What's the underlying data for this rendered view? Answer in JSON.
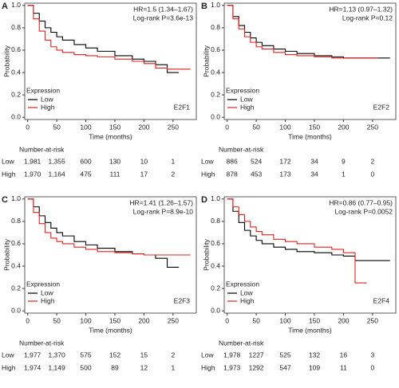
{
  "chart_data": [
    {
      "type": "line",
      "panel_label": "A",
      "annotations": [
        "HR=1.5 (1.34–1.67)",
        "Log-rank P=3.6e-13"
      ],
      "label": "E2F1",
      "legend_title": "Expression",
      "xlabel": "Time (months)",
      "ylabel": "Probability",
      "x": [
        0,
        10,
        20,
        30,
        40,
        50,
        60,
        80,
        100,
        120,
        150,
        180,
        200,
        220,
        240,
        260,
        280
      ],
      "series": [
        {
          "name": "Low",
          "color": "#000000",
          "values": [
            1,
            0.93,
            0.86,
            0.8,
            0.76,
            0.72,
            0.69,
            0.65,
            0.62,
            0.59,
            0.55,
            0.52,
            0.5,
            0.47,
            0.4,
            0.4,
            null
          ]
        },
        {
          "name": "High",
          "color": "#e3211f",
          "values": [
            1,
            0.88,
            0.77,
            0.69,
            0.63,
            0.6,
            0.58,
            0.56,
            0.55,
            0.54,
            0.52,
            0.5,
            0.48,
            0.44,
            0.43,
            0.43,
            0.43
          ]
        }
      ],
      "xlim": [
        -5,
        290
      ],
      "xticks": [
        0,
        50,
        100,
        150,
        200,
        250
      ],
      "ylim": [
        -0.02,
        1.02
      ],
      "yticks": [
        {
          "value": 0,
          "label": "0.0"
        },
        0.2,
        0.4,
        0.6,
        0.8,
        {
          "value": 1,
          "label": "1.0"
        }
      ],
      "risk_table": {
        "title": "Number-at-risk",
        "rows": [
          {
            "values": [
              1981,
              1355,
              600,
              130,
              10,
              1
            ],
            "value_labels": [
              "1,981",
              "1,355",
              "600",
              "130",
              "10",
              "1"
            ]
          },
          {
            "values": [
              1970,
              1164,
              475,
              111,
              17,
              2
            ],
            "value_labels": [
              "1,970",
              "1,164",
              "475",
              "111",
              "17",
              "2"
            ]
          }
        ]
      }
    },
    {
      "type": "line",
      "panel_label": "B",
      "annotations": [
        "HR=1.13 (0.97–1.32)",
        "Log-rank P=0.12"
      ],
      "label": "E2F2",
      "legend_title": "Expression",
      "xlabel": "Time (months)",
      "ylabel": "Probability",
      "x": [
        0,
        10,
        20,
        30,
        40,
        50,
        60,
        80,
        100,
        120,
        150,
        180,
        200,
        220,
        240,
        260,
        280
      ],
      "series": [
        {
          "name": "Low",
          "color": "#000000",
          "values": [
            1,
            0.9,
            0.82,
            0.76,
            0.71,
            0.67,
            0.64,
            0.61,
            0.59,
            0.57,
            0.55,
            0.54,
            0.53,
            0.53,
            0.53,
            0.53,
            0.53
          ]
        },
        {
          "name": "High",
          "color": "#e3211f",
          "values": [
            1,
            0.88,
            0.79,
            0.72,
            0.67,
            0.63,
            0.61,
            0.58,
            0.56,
            0.55,
            0.54,
            0.53,
            0.53,
            0.53,
            0.53,
            0.53,
            null
          ]
        }
      ],
      "xlim": [
        -5,
        290
      ],
      "xticks": [
        0,
        50,
        100,
        150,
        200,
        250
      ],
      "ylim": [
        -0.02,
        1.02
      ],
      "yticks": [
        {
          "value": 0,
          "label": "0.0"
        },
        0.2,
        0.4,
        0.6,
        0.8,
        {
          "value": 1,
          "label": "1.0"
        }
      ],
      "risk_table": {
        "title": "Number-at-risk",
        "rows": [
          {
            "values": [
              886,
              524,
              172,
              34,
              9,
              2
            ]
          },
          {
            "values": [
              878,
              453,
              173,
              34,
              1,
              0
            ]
          }
        ]
      }
    },
    {
      "type": "line",
      "panel_label": "C",
      "annotations": [
        "HR=1.41 (1.26–1.57)",
        "Log-rank P=8.9e-10"
      ],
      "label": "E2F3",
      "legend_title": "Expression",
      "xlabel": "Time (months)",
      "ylabel": "Probability",
      "x": [
        0,
        10,
        20,
        30,
        40,
        50,
        60,
        80,
        100,
        120,
        150,
        180,
        200,
        220,
        240,
        260,
        280
      ],
      "series": [
        {
          "name": "Low",
          "color": "#000000",
          "values": [
            1,
            0.93,
            0.85,
            0.79,
            0.74,
            0.7,
            0.67,
            0.62,
            0.59,
            0.56,
            0.53,
            0.51,
            0.5,
            0.47,
            0.39,
            0.39,
            null
          ]
        },
        {
          "name": "High",
          "color": "#e3211f",
          "values": [
            1,
            0.88,
            0.78,
            0.7,
            0.65,
            0.62,
            0.6,
            0.57,
            0.55,
            0.53,
            0.52,
            0.51,
            0.5,
            0.5,
            0.5,
            0.5,
            0.5
          ]
        }
      ],
      "xlim": [
        -5,
        290
      ],
      "xticks": [
        0,
        50,
        100,
        150,
        200,
        250
      ],
      "ylim": [
        -0.02,
        1.02
      ],
      "yticks": [
        {
          "value": 0,
          "label": "0.0"
        },
        0.2,
        0.4,
        0.6,
        0.8,
        {
          "value": 1,
          "label": "1.0"
        }
      ],
      "risk_table": {
        "title": "Number-at-risk",
        "rows": [
          {
            "values": [
              1977,
              1370,
              575,
              152,
              15,
              2
            ],
            "value_labels": [
              "1,977",
              "1,370",
              "575",
              "152",
              "15",
              "2"
            ]
          },
          {
            "values": [
              1974,
              1149,
              500,
              89,
              12,
              1
            ],
            "value_labels": [
              "1,974",
              "1,149",
              "500",
              "89",
              "12",
              "1"
            ]
          }
        ]
      }
    },
    {
      "type": "line",
      "panel_label": "D",
      "annotations": [
        "HR=0.86 (0.77–0.95)",
        "Log-rank P=0.0052"
      ],
      "label": "E2F4",
      "legend_title": "Expression",
      "xlabel": "Time (months)",
      "ylabel": "Probability",
      "x": [
        0,
        10,
        20,
        30,
        40,
        50,
        60,
        80,
        100,
        120,
        150,
        180,
        200,
        220,
        240,
        260,
        280
      ],
      "series": [
        {
          "name": "Low",
          "color": "#000000",
          "values": [
            1,
            0.89,
            0.79,
            0.72,
            0.67,
            0.63,
            0.6,
            0.57,
            0.55,
            0.53,
            0.52,
            0.5,
            0.49,
            0.45,
            0.45,
            0.45,
            0.45
          ]
        },
        {
          "name": "High",
          "color": "#e3211f",
          "values": [
            1,
            0.93,
            0.86,
            0.8,
            0.75,
            0.71,
            0.68,
            0.64,
            0.62,
            0.6,
            0.57,
            0.55,
            0.52,
            0.25,
            0.25,
            null,
            null
          ]
        }
      ],
      "xlim": [
        -5,
        290
      ],
      "xticks": [
        0,
        50,
        100,
        150,
        200,
        250
      ],
      "ylim": [
        -0.02,
        1.02
      ],
      "yticks": [
        {
          "value": 0,
          "label": "0.0"
        },
        0.2,
        0.4,
        0.6,
        0.8,
        {
          "value": 1,
          "label": "1.0"
        }
      ],
      "risk_table": {
        "title": "Number-at-risk",
        "rows": [
          {
            "values": [
              1978,
              1227,
              525,
              132,
              16,
              3
            ],
            "value_labels": [
              "1,978",
              "1227",
              "525",
              "132",
              "16",
              "3"
            ]
          },
          {
            "values": [
              1973,
              1292,
              547,
              109,
              11,
              0
            ],
            "value_labels": [
              "1,973",
              "1292",
              "547",
              "109",
              "11",
              "0"
            ]
          }
        ]
      }
    }
  ]
}
